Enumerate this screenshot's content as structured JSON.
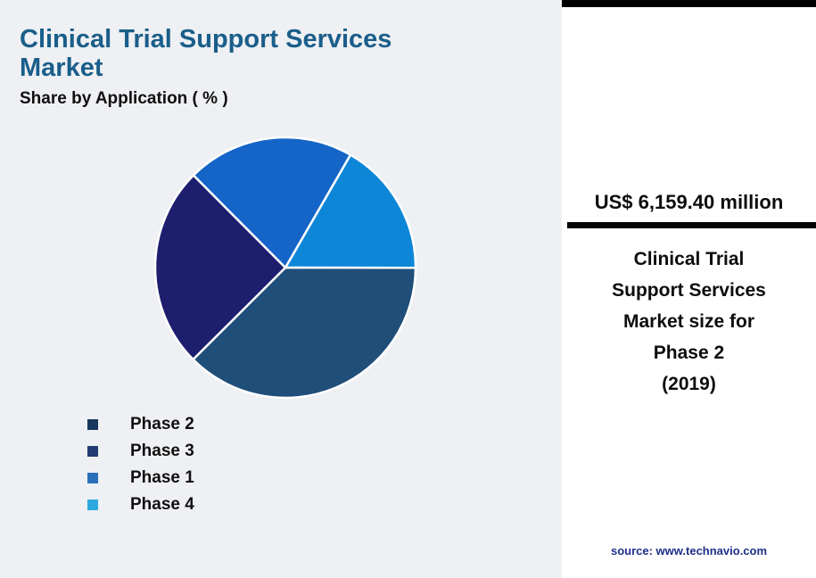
{
  "header": {
    "title_line1": "Clinical Trial Support Services",
    "title_line2": "Market",
    "subtitle": "Share by Application ( % )",
    "title_color": "#1A5E8A"
  },
  "chart_data": {
    "type": "pie",
    "title": "Clinical Trial Support Services Market — Share by Application ( % )",
    "start_angle_deg": 30,
    "slices": [
      {
        "label": "Phase 4",
        "value": 16.7,
        "color": "#0D86D8"
      },
      {
        "label": "Phase 2",
        "value": 37.5,
        "color": "#1F4E79"
      },
      {
        "label": "Phase 3",
        "value": 25.0,
        "color": "#1D1E6E"
      },
      {
        "label": "Phase 1",
        "value": 20.8,
        "color": "#1565C8"
      }
    ],
    "legend": [
      {
        "label": "Phase 2",
        "color": "#17375E"
      },
      {
        "label": "Phase 3",
        "color": "#243B73"
      },
      {
        "label": "Phase 1",
        "color": "#2A6FB8"
      },
      {
        "label": "Phase 4",
        "color": "#2EA9DF"
      }
    ],
    "legend_position": "bottom-left"
  },
  "panel": {
    "value": "US$ 6,159.40 million",
    "description_lines": [
      "Clinical Trial",
      "Support Services",
      "Market size for",
      "Phase 2",
      "(2019)"
    ],
    "source": "source: www.technavio.com"
  },
  "colors": {
    "left_background": "#EEF0F3",
    "panel_background": "#FFFFFF",
    "divider": "#000000",
    "source_text": "#1F2F8A"
  }
}
